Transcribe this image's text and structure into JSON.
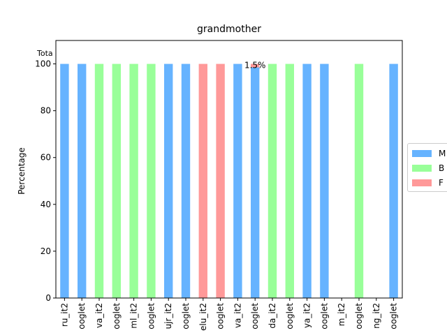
{
  "chart_data": {
    "type": "bar",
    "title": "grandmother",
    "ylabel": "Percentage",
    "xlabel": "",
    "ylim": [
      0,
      110
    ],
    "yticks": [
      0,
      20,
      40,
      60,
      80,
      100
    ],
    "stacked": true,
    "total_label": "Tota",
    "categories": [
      "ru_it2",
      "ooglet",
      "va_it2",
      "ooglet",
      "ml_it2",
      "ooglet",
      "ujr_it2",
      "ooglet",
      "elu_it2",
      "ooglet",
      "va_it2",
      "ooglet",
      "da_it2",
      "ooglet",
      "ya_it2",
      "ooglet",
      "m_it2",
      "ooglet",
      "ng_it2",
      "ooglet"
    ],
    "series": [
      {
        "name": "M",
        "color": "#66b3ff",
        "values": [
          100,
          100,
          0,
          0,
          0,
          0,
          100,
          100,
          0,
          0,
          100,
          98.5,
          0,
          0,
          100,
          100,
          0,
          0,
          0,
          100
        ]
      },
      {
        "name": "B",
        "color": "#99ff99",
        "values": [
          0,
          0,
          100,
          100,
          100,
          100,
          0,
          0,
          0,
          0,
          0,
          0,
          100,
          100,
          0,
          0,
          0,
          100,
          0,
          0
        ]
      },
      {
        "name": "F",
        "color": "#ff9999",
        "values": [
          0,
          0,
          0,
          0,
          0,
          0,
          0,
          0,
          100,
          100,
          0,
          1.5,
          0,
          0,
          0,
          0,
          0,
          0,
          0,
          0
        ]
      }
    ],
    "annotations": [
      {
        "text": "1.5%",
        "category_index": 11,
        "y": 100
      }
    ],
    "legend": "center-right"
  }
}
